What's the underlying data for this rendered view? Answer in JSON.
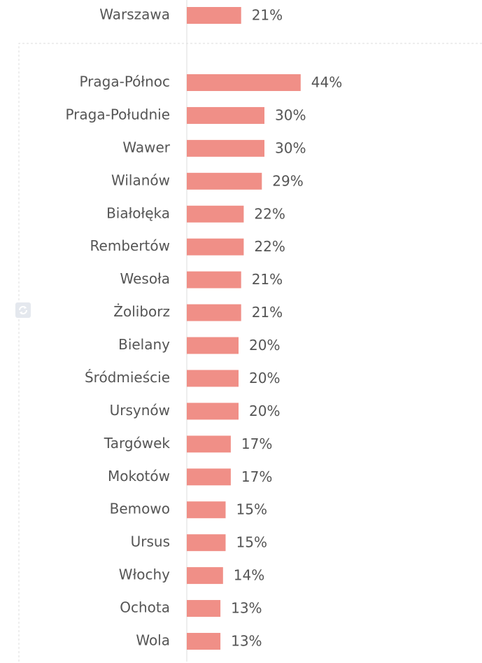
{
  "chart_data": [
    {
      "type": "bar",
      "orientation": "horizontal",
      "color": "#f08f87",
      "xlim": [
        0,
        100
      ],
      "categories": [
        "Warszawa"
      ],
      "values": [
        21
      ],
      "value_labels": [
        "21%"
      ]
    },
    {
      "type": "bar",
      "orientation": "horizontal",
      "color": "#f08f87",
      "xlim": [
        0,
        100
      ],
      "categories": [
        "Praga-Północ",
        "Praga-Południe",
        "Wawer",
        "Wilanów",
        "Białołęka",
        "Rembertów",
        "Wesoła",
        "Żoliborz",
        "Bielany",
        "Śródmieście",
        "Ursynów",
        "Targówek",
        "Mokotów",
        "Bemowo",
        "Ursus",
        "Włochy",
        "Ochota",
        "Wola"
      ],
      "values": [
        44,
        30,
        30,
        29,
        22,
        22,
        21,
        21,
        20,
        20,
        20,
        17,
        17,
        15,
        15,
        14,
        13,
        13
      ],
      "value_labels": [
        "44%",
        "30%",
        "30%",
        "29%",
        "22%",
        "22%",
        "21%",
        "21%",
        "20%",
        "20%",
        "20%",
        "17%",
        "17%",
        "15%",
        "15%",
        "14%",
        "13%",
        "13%"
      ]
    }
  ]
}
